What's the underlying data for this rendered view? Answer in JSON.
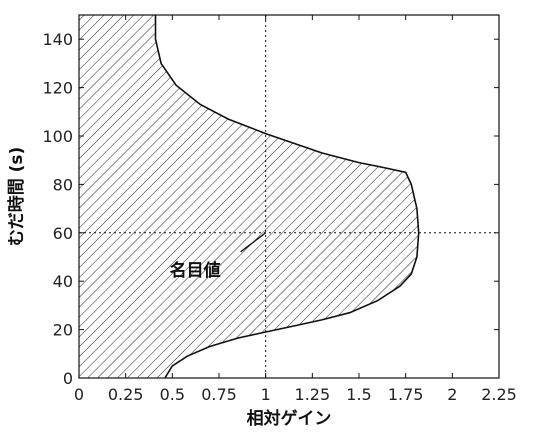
{
  "chart_data": {
    "type": "area",
    "title": "",
    "xlabel": "相対ゲイン",
    "ylabel": "むだ時間 (s)",
    "xlim": [
      0,
      2.25
    ],
    "ylim": [
      0,
      150
    ],
    "x_ticks": [
      0,
      0.25,
      0.5,
      0.75,
      1,
      1.25,
      1.5,
      1.75,
      2,
      2.25
    ],
    "x_tick_labels": [
      "0",
      "0.25",
      "0.5",
      "0.75",
      "1",
      "1.25",
      "1.5",
      "1.75",
      "2",
      "2.25"
    ],
    "y_ticks": [
      0,
      20,
      40,
      60,
      80,
      100,
      120,
      140
    ],
    "y_tick_labels": [
      "0",
      "20",
      "40",
      "60",
      "80",
      "100",
      "120",
      "140"
    ],
    "grid": false,
    "hatch": "diagonal",
    "region_boundary": [
      [
        0.41,
        150
      ],
      [
        0.41,
        140
      ],
      [
        0.44,
        130
      ],
      [
        0.52,
        121
      ],
      [
        0.65,
        113
      ],
      [
        0.8,
        107
      ],
      [
        1.0,
        101
      ],
      [
        1.15,
        97
      ],
      [
        1.3,
        93
      ],
      [
        1.5,
        89
      ],
      [
        1.63,
        87
      ],
      [
        1.75,
        85
      ],
      [
        1.78,
        80
      ],
      [
        1.81,
        70
      ],
      [
        1.82,
        60
      ],
      [
        1.81,
        50
      ],
      [
        1.78,
        43
      ],
      [
        1.72,
        38
      ],
      [
        1.6,
        32
      ],
      [
        1.45,
        27
      ],
      [
        1.3,
        24
      ],
      [
        1.15,
        21.5
      ],
      [
        1.0,
        19
      ],
      [
        0.85,
        16.5
      ],
      [
        0.7,
        13
      ],
      [
        0.58,
        9
      ],
      [
        0.5,
        5
      ],
      [
        0.46,
        0
      ]
    ],
    "reference_lines": {
      "x": 1,
      "y": 60
    },
    "annotation": {
      "text": "名目値",
      "point": [
        1,
        60
      ]
    }
  }
}
